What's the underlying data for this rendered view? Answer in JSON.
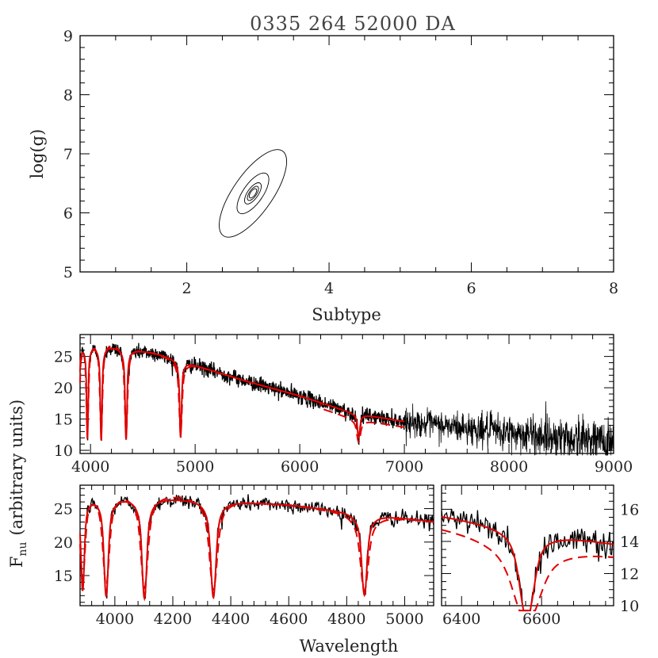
{
  "chart_data": [
    {
      "id": "contour",
      "type": "contour",
      "title": "0335 264 52000 DA",
      "xlabel": "Subtype",
      "ylabel": "log(g)",
      "xlim": [
        0.5,
        8
      ],
      "ylim": [
        5,
        9
      ],
      "xticks": [
        2,
        4,
        6,
        8
      ],
      "yticks": [
        5,
        6,
        7,
        8,
        9
      ],
      "contour_center": [
        2.93,
        6.33
      ],
      "contours": [
        {
          "level": 1,
          "ax": 0.055,
          "bx": 0.0,
          "ay": 0.052,
          "by": 0.0,
          "rot": -55
        },
        {
          "level": 2,
          "ax": 0.09,
          "ay": 0.085,
          "rot": -55
        },
        {
          "level": 3,
          "ax": 0.14,
          "ay": 0.14,
          "rot": -55
        },
        {
          "level": 4,
          "ax": 0.28,
          "ay": 0.28,
          "rot": -55
        },
        {
          "level": 5,
          "ax": 0.62,
          "ay": 0.58,
          "rot": -55
        }
      ]
    },
    {
      "id": "full",
      "type": "line",
      "xlim": [
        3900,
        9000
      ],
      "ylim": [
        9.5,
        28.5
      ],
      "xticks": [
        4000,
        5000,
        6000,
        7000,
        8000,
        9000
      ],
      "yticks": [
        10,
        15,
        20,
        25
      ],
      "series": [
        {
          "style": "observed-black"
        },
        {
          "style": "model-red-solid"
        },
        {
          "style": "model-red-dashed"
        }
      ],
      "continuum": [
        [
          3900,
          27.0
        ],
        [
          4200,
          26.6
        ],
        [
          4600,
          25.6
        ],
        [
          5000,
          23.6
        ],
        [
          5500,
          21.0
        ],
        [
          6000,
          18.7
        ],
        [
          6500,
          16.0
        ],
        [
          7000,
          14.6
        ],
        [
          8000,
          12.8
        ],
        [
          9000,
          11.4
        ]
      ],
      "lines": [
        {
          "name": "H-alpha",
          "x": 6563,
          "depth": 3.8,
          "width": 14
        },
        {
          "name": "H-beta",
          "x": 4861,
          "depth": 12.2,
          "width": 11
        },
        {
          "name": "H-gamma",
          "x": 4340,
          "depth": 14.5,
          "width": 11
        },
        {
          "name": "H-delta",
          "x": 4102,
          "depth": 15.0,
          "width": 10
        },
        {
          "name": "H-epsilon",
          "x": 3970,
          "depth": 14.8,
          "width": 9
        },
        {
          "name": "H-zeta",
          "x": 3889,
          "depth": 14.0,
          "width": 7
        }
      ],
      "model_range": [
        3900,
        7000
      ]
    },
    {
      "id": "zoom_blue",
      "type": "line",
      "xlim": [
        3880,
        5100
      ],
      "ylim": [
        10.5,
        28.5
      ],
      "xticks": [
        4000,
        4200,
        4400,
        4600,
        4800,
        5000
      ],
      "yticks": [
        15,
        20,
        25
      ]
    },
    {
      "id": "zoom_halpha",
      "type": "line",
      "xlim": [
        6350,
        6780
      ],
      "ylim": [
        10,
        17.5
      ],
      "xticks": [
        6400,
        6600
      ],
      "yticks": [
        10,
        12,
        14,
        16
      ],
      "yaxis_side": "right"
    }
  ],
  "labels": {
    "title": "0335 264 52000 DA",
    "top_xlabel": "Subtype",
    "top_ylabel": "log(g)",
    "bottom_xlabel": "Wavelength",
    "bottom_ylabel_main": "F",
    "bottom_ylabel_sub": "nu",
    "bottom_ylabel_rest": "(arbitrary units)"
  }
}
